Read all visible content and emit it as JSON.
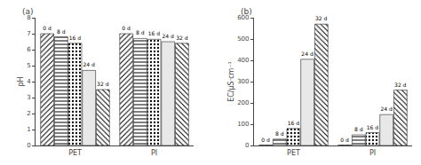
{
  "chart_data": [
    {
      "type": "bar",
      "title": "(a)",
      "ylabel": "pH",
      "categories": [
        "PET",
        "PI"
      ],
      "series": [
        {
          "name": "0 d",
          "color": "#aaaaaa",
          "values": [
            7.0,
            7.0
          ]
        },
        {
          "name": "8 d",
          "color": "#888888",
          "values": [
            6.8,
            6.7
          ]
        },
        {
          "name": "16 d",
          "color": "#bbbbbb",
          "values": [
            6.4,
            6.65
          ]
        },
        {
          "name": "24 d",
          "color": "#e8e8e8",
          "values": [
            4.7,
            6.5
          ]
        },
        {
          "name": "32 d",
          "color": "#cccccc",
          "values": [
            3.5,
            6.4
          ]
        }
      ],
      "ylim": [
        0,
        8
      ],
      "yticks": [
        0,
        1,
        2,
        3,
        4,
        5,
        6,
        7,
        8
      ],
      "grid": false
    },
    {
      "type": "bar",
      "title": "(b)",
      "ylabel": "EC/μS·cm⁻¹",
      "categories": [
        "PET",
        "PI"
      ],
      "series": [
        {
          "name": "0 d",
          "color": "#aaaaaa",
          "values": [
            2,
            2
          ]
        },
        {
          "name": "8 d",
          "color": "#888888",
          "values": [
            30,
            50
          ]
        },
        {
          "name": "16 d",
          "color": "#bbbbbb",
          "values": [
            80,
            60
          ]
        },
        {
          "name": "24 d",
          "color": "#e8e8e8",
          "values": [
            405,
            145
          ]
        },
        {
          "name": "32 d",
          "color": "#cccccc",
          "values": [
            570,
            260
          ]
        }
      ],
      "ylim": [
        0,
        600
      ],
      "yticks": [
        0,
        100,
        200,
        300,
        400,
        500,
        600
      ],
      "grid": false
    }
  ]
}
